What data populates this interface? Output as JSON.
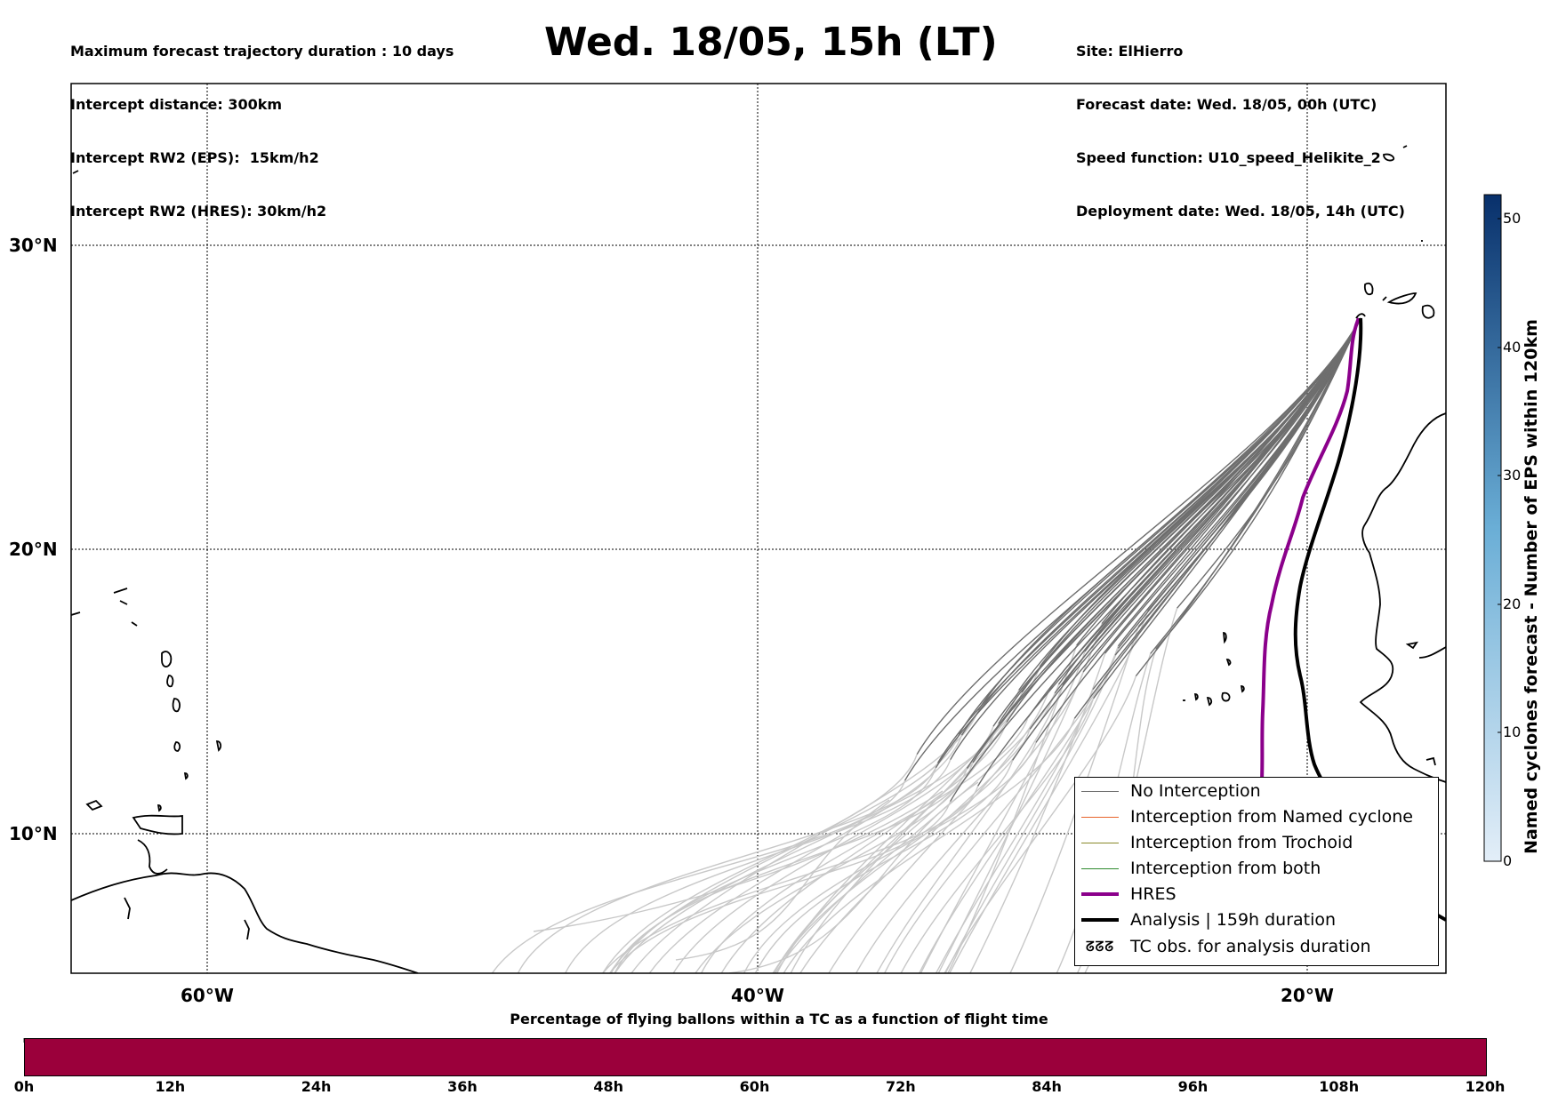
{
  "header": {
    "left_lines": [
      "Maximum forecast trajectory duration : 10 days",
      "Intercept distance: 300km",
      "Intercept RW2 (EPS):  15km/h2",
      "Intercept RW2 (HRES): 30km/h2"
    ],
    "title": "Wed. 18/05, 15h (LT)",
    "right_lines": [
      "Site: ElHierro",
      "Forecast date: Wed. 18/05, 00h (UTC)",
      "Speed function: U10_speed_Helikite_2",
      "Deployment date: Wed. 18/05, 14h (UTC)"
    ]
  },
  "map": {
    "lat_labels": [
      "30°N",
      "20°N",
      "10°N"
    ],
    "lon_labels": [
      "60°W",
      "40°W",
      "20°W"
    ]
  },
  "legend": {
    "items": [
      {
        "label": "No Interception",
        "color": "#6e6e6e",
        "icon": "thin-line"
      },
      {
        "label": "Interception from Named cyclone",
        "color": "#e8642a",
        "icon": "thin-line"
      },
      {
        "label": "Interception from Trochoid",
        "color": "#8a8a2a",
        "icon": "thin-line"
      },
      {
        "label": "Interception from both",
        "color": "#2e8b2e",
        "icon": "thin-line"
      },
      {
        "label": "HRES",
        "color": "#8b008b",
        "icon": "thick-line"
      },
      {
        "label": "Analysis | 159h duration",
        "color": "#000000",
        "icon": "thick-line"
      },
      {
        "label": "TC obs. for analysis duration",
        "color": "#000000",
        "icon": "cyclone-symbol-icon"
      }
    ],
    "cyclone_glyphs": "ᘔᘔᘔ"
  },
  "colorbar": {
    "title": "Named cyclones forecast - Number of EPS within 120km",
    "ticks": [
      "50",
      "40",
      "30",
      "20",
      "10",
      "0"
    ],
    "color_low": "#e3eef8",
    "color_high": "#08306b"
  },
  "bottom": {
    "title": "Percentage of flying ballons within a TC as a function of flight time",
    "ticks": [
      "0h",
      "12h",
      "24h",
      "36h",
      "48h",
      "60h",
      "72h",
      "84h",
      "96h",
      "108h",
      "120h"
    ],
    "bar_color": "#9b003b"
  }
}
